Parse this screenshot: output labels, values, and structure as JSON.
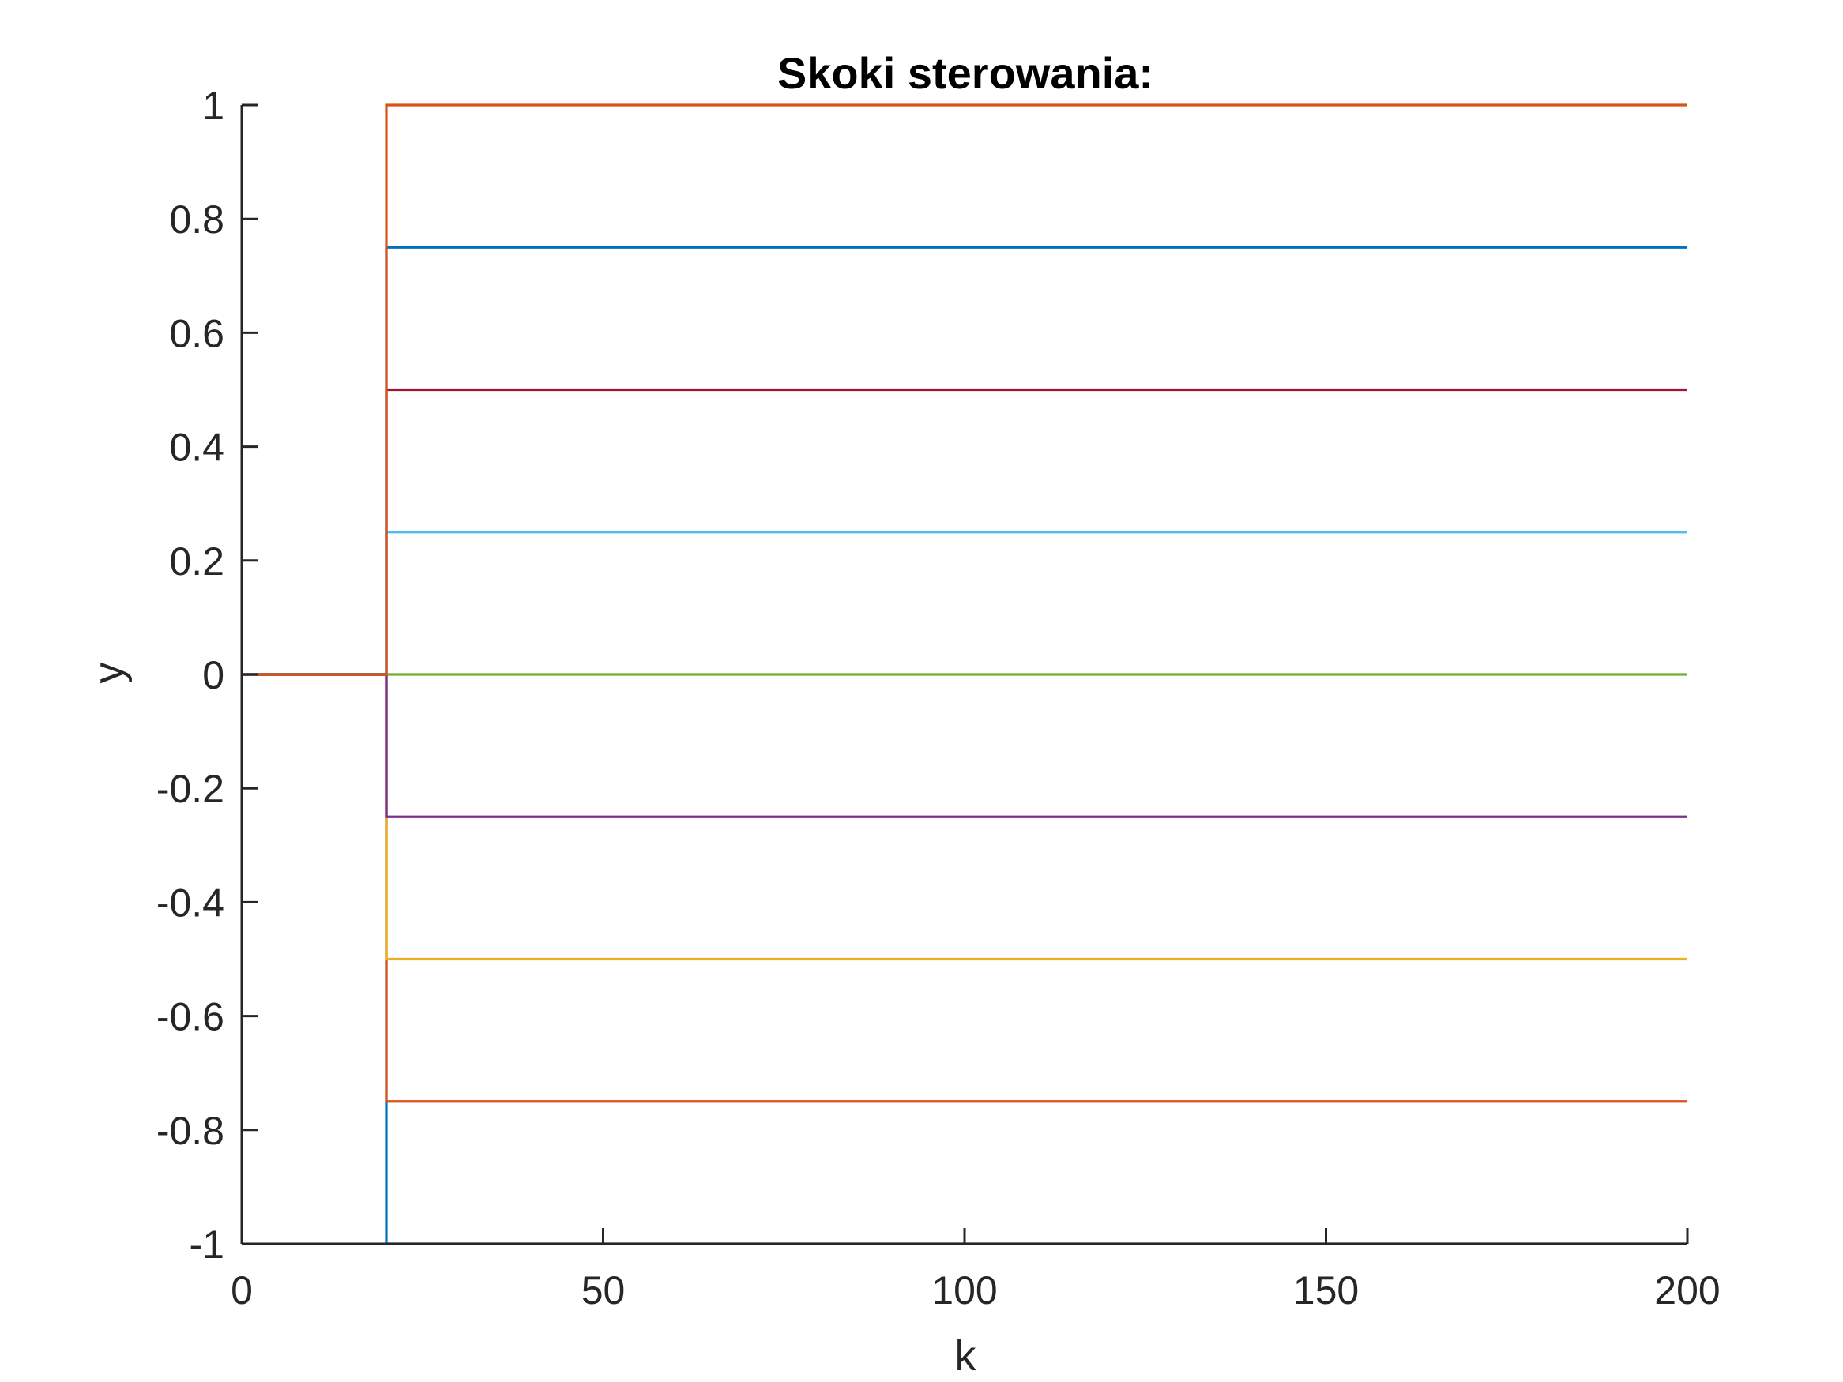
{
  "chart_data": {
    "type": "line",
    "title": "Skoki sterowania:",
    "xlabel": "k",
    "ylabel": "y",
    "xlim": [
      0,
      200
    ],
    "ylim": [
      -1,
      1
    ],
    "xticks": [
      0,
      50,
      100,
      150,
      200
    ],
    "yticks": [
      -1,
      -0.8,
      -0.6,
      -0.4,
      -0.2,
      0,
      0.2,
      0.4,
      0.6,
      0.8,
      1
    ],
    "ytick_labels": [
      "-1",
      "-0.8",
      "-0.6",
      "-0.4",
      "-0.2",
      "0",
      "0.2",
      "0.4",
      "0.6",
      "0.8",
      "1"
    ],
    "xtick_labels": [
      "0",
      "50",
      "100",
      "150",
      "200"
    ],
    "grid": false,
    "legend": "none",
    "step_k": 20,
    "series": [
      {
        "color": "#0072BD",
        "values": [
          [
            0,
            0
          ],
          [
            20,
            0
          ],
          [
            20,
            -1
          ],
          [
            200,
            -1
          ]
        ]
      },
      {
        "color": "#D95319",
        "values": [
          [
            0,
            0
          ],
          [
            20,
            0
          ],
          [
            20,
            -0.75
          ],
          [
            200,
            -0.75
          ]
        ]
      },
      {
        "color": "#EDB120",
        "values": [
          [
            0,
            0
          ],
          [
            20,
            0
          ],
          [
            20,
            -0.5
          ],
          [
            200,
            -0.5
          ]
        ]
      },
      {
        "color": "#7E2F8E",
        "values": [
          [
            0,
            0
          ],
          [
            20,
            0
          ],
          [
            20,
            -0.25
          ],
          [
            200,
            -0.25
          ]
        ]
      },
      {
        "color": "#77AC30",
        "values": [
          [
            0,
            0
          ],
          [
            20,
            0
          ],
          [
            20,
            0
          ],
          [
            200,
            0
          ]
        ]
      },
      {
        "color": "#4DBEEE",
        "values": [
          [
            0,
            0
          ],
          [
            20,
            0
          ],
          [
            20,
            0.25
          ],
          [
            200,
            0.25
          ]
        ]
      },
      {
        "color": "#A2142F",
        "values": [
          [
            0,
            0
          ],
          [
            20,
            0
          ],
          [
            20,
            0.5
          ],
          [
            200,
            0.5
          ]
        ]
      },
      {
        "color": "#0072BD",
        "values": [
          [
            0,
            0
          ],
          [
            20,
            0
          ],
          [
            20,
            0.75
          ],
          [
            200,
            0.75
          ]
        ]
      },
      {
        "color": "#D95319",
        "values": [
          [
            0,
            0
          ],
          [
            20,
            0
          ],
          [
            20,
            1
          ],
          [
            200,
            1
          ]
        ]
      }
    ]
  }
}
